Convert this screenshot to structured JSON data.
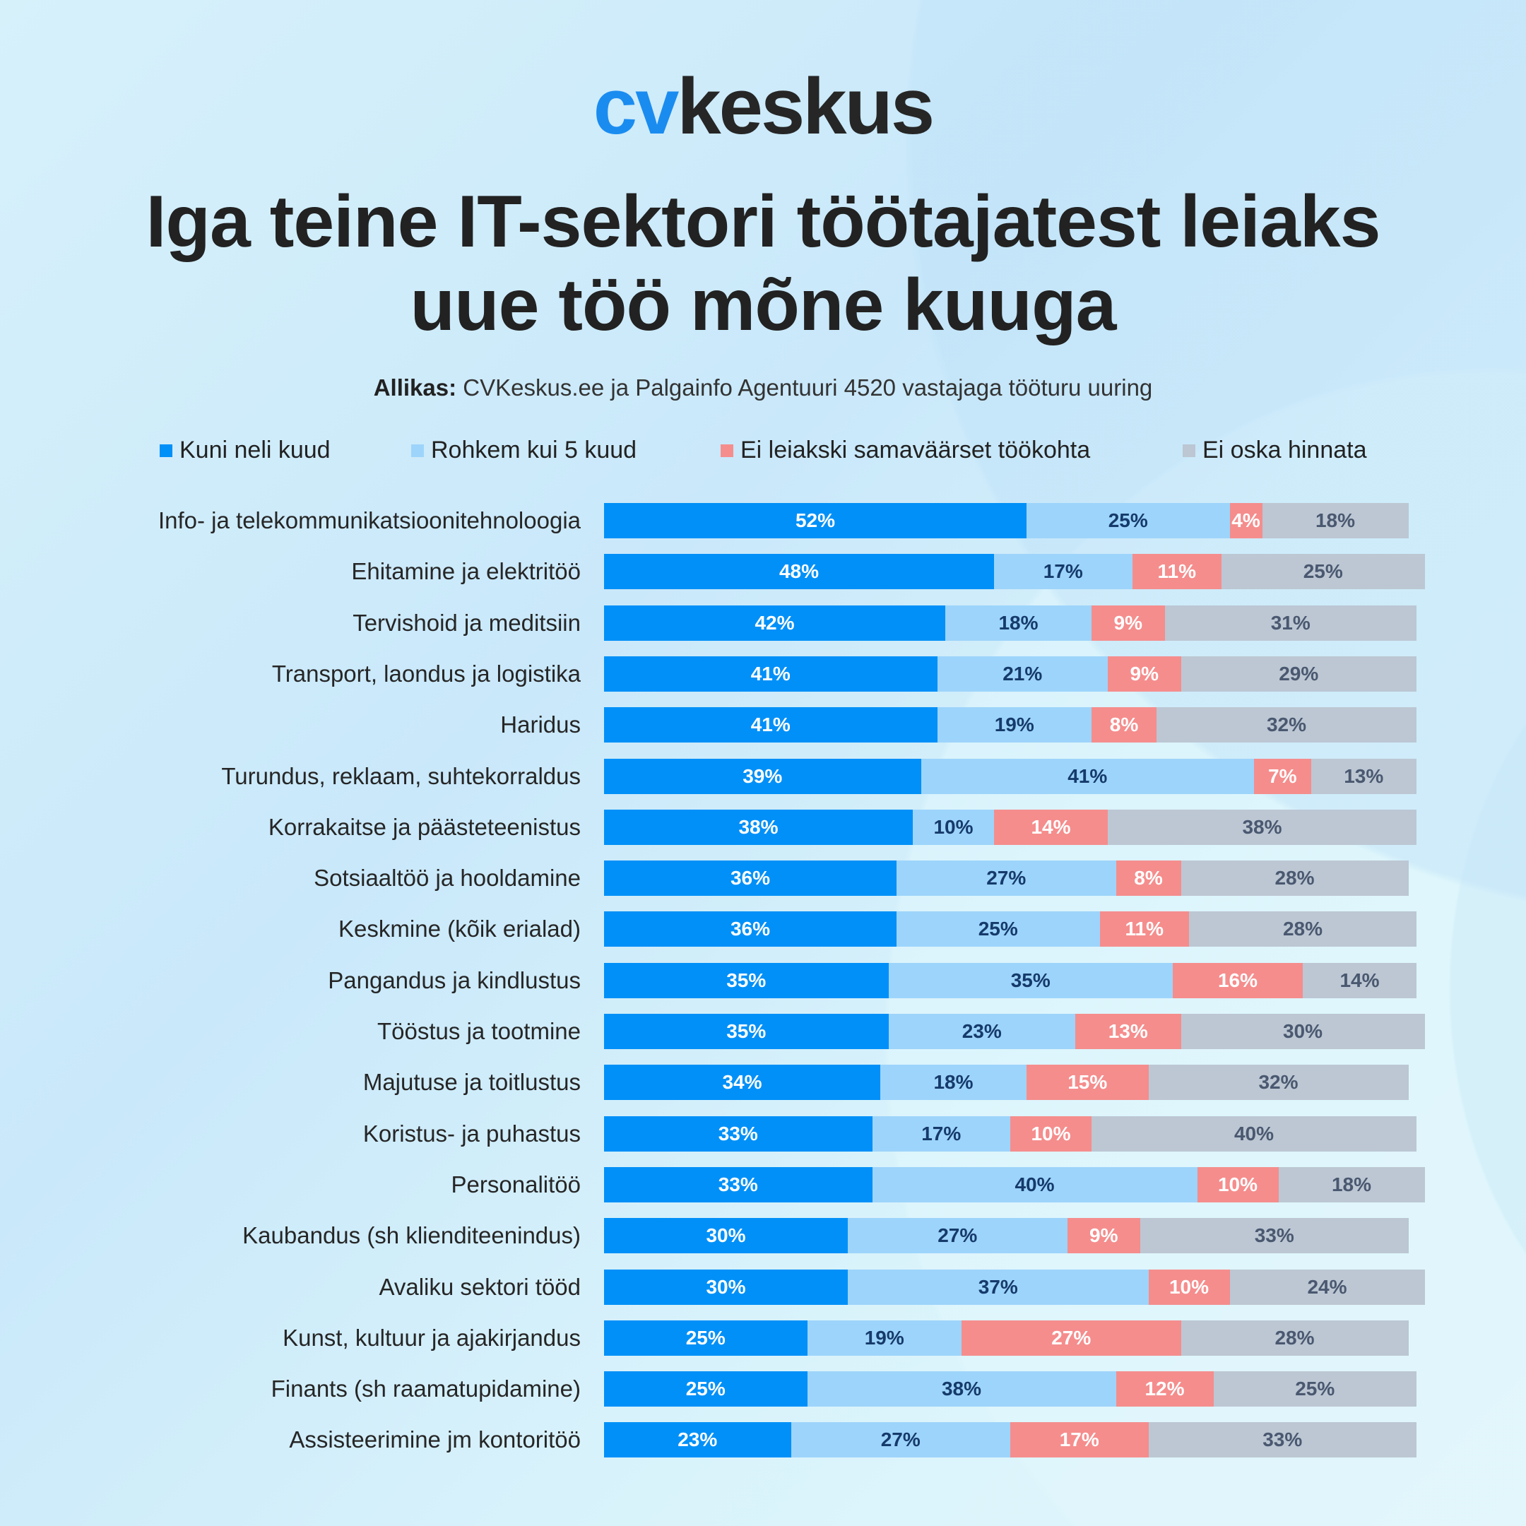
{
  "logo": {
    "cv": "cv",
    "rest": "keskus"
  },
  "title_lines": [
    "Iga teine IT-sektori töötajatest leiaks",
    "uue töö mõne kuuga"
  ],
  "source": {
    "label": "Allikas:",
    "text": " CVKeskus.ee ja Palgainfo Agentuuri 4520 vastajaga tööturu uuring"
  },
  "chart_data": {
    "type": "bar",
    "orientation": "horizontal",
    "stacked": true,
    "legend_position": "top",
    "unit": "%",
    "categories": [
      "Info- ja telekommunikatsioonitehnoloogia",
      "Ehitamine ja elektritöö",
      "Tervishoid ja meditsiin",
      "Transport, laondus ja logistika",
      "Haridus",
      "Turundus, reklaam, suhtekorraldus",
      "Korrakaitse ja päästeteenistus",
      "Sotsiaaltöö ja hooldamine",
      "Keskmine (kõik erialad)",
      "Pangandus ja kindlustus",
      "Tööstus ja tootmine",
      "Majutuse ja toitlustus",
      "Koristus- ja puhastus",
      "Personalitöö",
      "Kaubandus (sh klienditeenindus)",
      "Avaliku sektori tööd",
      "Kunst, kultuur ja ajakirjandus",
      "Finants (sh raamatupidamine)",
      "Assisteerimine jm kontoritöö"
    ],
    "series": [
      {
        "name": "Kuni neli kuud",
        "color": "#0090f8",
        "text_color": "#ffffff",
        "values": [
          52,
          48,
          42,
          41,
          41,
          39,
          38,
          36,
          36,
          35,
          35,
          34,
          33,
          33,
          30,
          30,
          25,
          25,
          23
        ]
      },
      {
        "name": "Rohkem kui 5 kuud",
        "color": "#9dd4fb",
        "text_color": "#153a6b",
        "values": [
          25,
          17,
          18,
          21,
          19,
          41,
          10,
          27,
          25,
          35,
          23,
          18,
          17,
          40,
          27,
          37,
          19,
          38,
          27
        ]
      },
      {
        "name": "Ei leiakski samaväärset töökohta",
        "color": "#f58d8d",
        "text_color": "#ffffff",
        "values": [
          4,
          11,
          9,
          9,
          8,
          7,
          14,
          8,
          11,
          16,
          13,
          15,
          10,
          10,
          9,
          10,
          27,
          12,
          17
        ]
      },
      {
        "name": "Ei oska hinnata",
        "color": "#bcc7d3",
        "text_color": "#4a5870",
        "values": [
          18,
          25,
          31,
          29,
          32,
          13,
          38,
          28,
          28,
          14,
          30,
          32,
          40,
          18,
          33,
          24,
          28,
          25,
          33
        ]
      }
    ]
  }
}
